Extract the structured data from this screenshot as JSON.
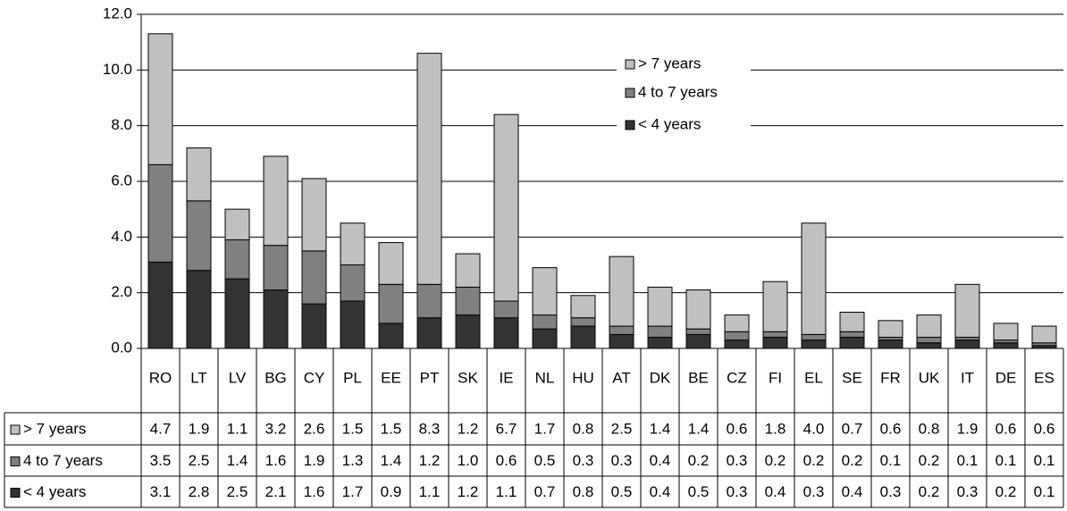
{
  "chart_data": {
    "type": "bar",
    "stacked": true,
    "categories": [
      "RO",
      "LT",
      "LV",
      "BG",
      "CY",
      "PL",
      "EE",
      "PT",
      "SK",
      "IE",
      "NL",
      "HU",
      "AT",
      "DK",
      "BE",
      "CZ",
      "FI",
      "EL",
      "SE",
      "FR",
      "UK",
      "IT",
      "DE",
      "ES"
    ],
    "series": [
      {
        "name": "> 7 years",
        "color": "#c0c0c0",
        "values": [
          4.7,
          1.9,
          1.1,
          3.2,
          2.6,
          1.5,
          1.5,
          8.3,
          1.2,
          6.7,
          1.7,
          0.8,
          2.5,
          1.4,
          1.4,
          0.6,
          1.8,
          4.0,
          0.7,
          0.6,
          0.8,
          1.9,
          0.6,
          0.6
        ],
        "value_labels": [
          "4.7",
          "1.9",
          "1.1",
          "3.2",
          "2.6",
          "1.5",
          "1.5",
          "8.3",
          "1.2",
          "6.7",
          "1.7",
          "0.8",
          "2.5",
          "1.4",
          "1.4",
          "0.6",
          "1.8",
          "4.0",
          "0.7",
          "0.6",
          "0.8",
          "1.9",
          "0.6",
          "0.6"
        ]
      },
      {
        "name": "4 to 7 years",
        "color": "#808080",
        "values": [
          3.5,
          2.5,
          1.4,
          1.6,
          1.9,
          1.3,
          1.4,
          1.2,
          1.0,
          0.6,
          0.5,
          0.3,
          0.3,
          0.4,
          0.2,
          0.3,
          0.2,
          0.2,
          0.2,
          0.1,
          0.2,
          0.1,
          0.1,
          0.1
        ],
        "value_labels": [
          "3.5",
          "2.5",
          "1.4",
          "1.6",
          "1.9",
          "1.3",
          "1.4",
          "1.2",
          "1.0",
          "0.6",
          "0.5",
          "0.3",
          "0.3",
          "0.4",
          "0.2",
          "0.3",
          "0.2",
          "0.2",
          "0.2",
          "0.1",
          "0.2",
          "0.1",
          "0.1",
          "0.1"
        ]
      },
      {
        "name": "< 4 years",
        "color": "#333333",
        "values": [
          3.1,
          2.8,
          2.5,
          2.1,
          1.6,
          1.7,
          0.9,
          1.1,
          1.2,
          1.1,
          0.7,
          0.8,
          0.5,
          0.4,
          0.5,
          0.3,
          0.4,
          0.3,
          0.4,
          0.3,
          0.2,
          0.3,
          0.2,
          0.1
        ],
        "value_labels": [
          "3.1",
          "2.8",
          "2.5",
          "2.1",
          "1.6",
          "1.7",
          "0.9",
          "1.1",
          "1.2",
          "1.1",
          "0.7",
          "0.8",
          "0.5",
          "0.4",
          "0.5",
          "0.3",
          "0.4",
          "0.3",
          "0.4",
          "0.3",
          "0.2",
          "0.3",
          "0.2",
          "0.1"
        ]
      }
    ],
    "ylim": [
      0,
      12
    ],
    "yticks": [
      {
        "value": 0,
        "label": "0.0"
      },
      {
        "value": 2,
        "label": "2.0"
      },
      {
        "value": 4,
        "label": "4.0"
      },
      {
        "value": 6,
        "label": "6.0"
      },
      {
        "value": 8,
        "label": "8.0"
      },
      {
        "value": 10,
        "label": "10.0"
      },
      {
        "value": 12,
        "label": "12.0"
      }
    ],
    "grid": true
  }
}
